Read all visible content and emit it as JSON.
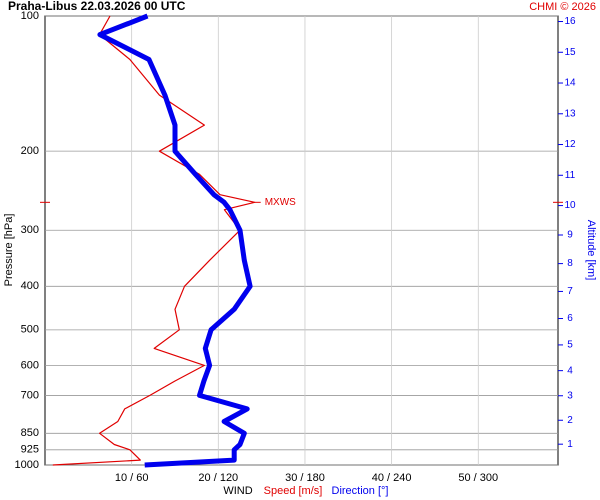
{
  "chart_data": {
    "type": "line",
    "title": "Praha-Libus   22.03.2026 00 UTC",
    "credit": "CHMI © 2026",
    "ylabel": "Pressure [hPa]",
    "y2label": "Altitude [km]",
    "xlabel": "WIND",
    "xlabel_parts": [
      "Speed [m/s]",
      "Direction [°]"
    ],
    "annotation": {
      "text": "MXWS",
      "pressure": 260
    },
    "pressure": [
      1000,
      975,
      925,
      900,
      850,
      800,
      750,
      700,
      650,
      600,
      550,
      500,
      450,
      400,
      350,
      300,
      270,
      260,
      250,
      225,
      200,
      175,
      150,
      125,
      110,
      100
    ],
    "series": [
      {
        "name": "Speed [m/s]",
        "color": "#e00000",
        "axis": "x",
        "values": [
          0.9,
          11,
          9.8,
          8,
          6.3,
          8.4,
          9.2,
          12.1,
          15,
          18.4,
          12.6,
          15.5,
          15,
          16.1,
          19,
          22.5,
          20.7,
          24.2,
          20.2,
          17.8,
          13.2,
          18.4,
          13.2,
          9.8,
          6.3,
          7.5
        ]
      },
      {
        "name": "Direction [°]",
        "color": "#0000ee",
        "axis": "x2",
        "values": [
          69,
          131,
          131,
          135,
          138,
          124,
          140,
          107,
          110,
          114,
          111,
          115,
          131,
          142,
          138,
          135,
          128,
          124,
          117,
          104,
          90,
          90,
          83,
          72,
          38,
          71
        ]
      }
    ],
    "ylim": [
      1000,
      100
    ],
    "ylog": true,
    "yticks": [
      100,
      200,
      300,
      400,
      500,
      600,
      700,
      850,
      925,
      1000
    ],
    "y2ticks": [
      1,
      2,
      3,
      4,
      5,
      6,
      7,
      8,
      9,
      10,
      11,
      12,
      13,
      14,
      15,
      16
    ],
    "xlim": [
      0,
      59.2
    ],
    "x2lim": [
      0,
      355.2
    ],
    "xticks": [
      {
        "value": 10,
        "label": "10 / 60"
      },
      {
        "value": 20,
        "label": "20 / 120"
      },
      {
        "value": 30,
        "label": "30 / 180"
      },
      {
        "value": 40,
        "label": "40 / 240"
      },
      {
        "value": 50,
        "label": "50 / 300"
      }
    ],
    "grid": true
  }
}
